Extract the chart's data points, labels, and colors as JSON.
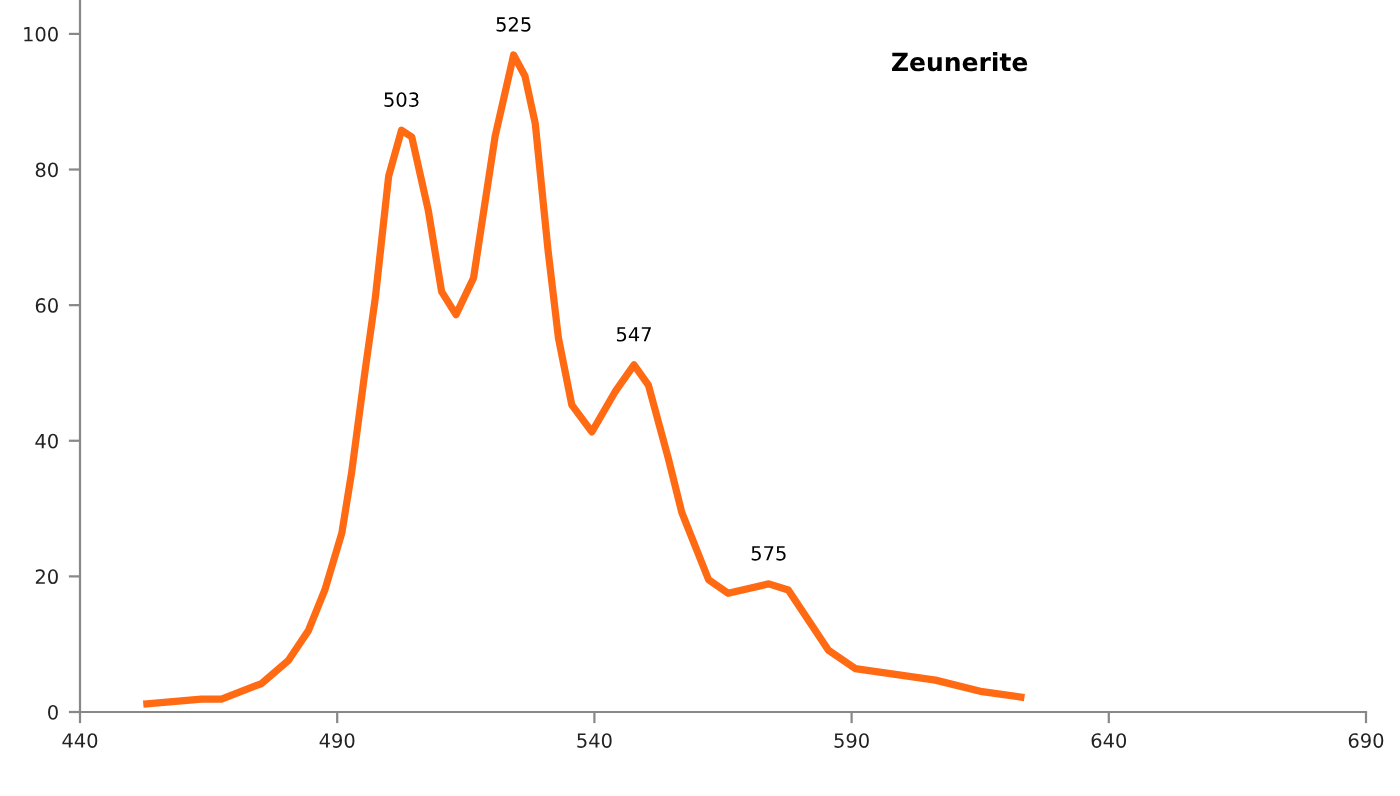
{
  "chart_data": {
    "type": "line",
    "title": "Zeunerite",
    "x": [
      453,
      463.6,
      467.5,
      475.3,
      480.5,
      484.4,
      487.6,
      490.9,
      492.8,
      495.4,
      497.4,
      500,
      502.5,
      504.5,
      507.7,
      510.3,
      513.1,
      516.5,
      520.7,
      524.3,
      526.5,
      528.5,
      531,
      533,
      535.6,
      539.5,
      544,
      547.7,
      550.5,
      554.4,
      557,
      562.2,
      566,
      573.9,
      577.7,
      585.5,
      590.7,
      606.3,
      615.4,
      622.9
    ],
    "series": [
      {
        "color": "#ff6a13",
        "values": [
          1.2,
          1.9,
          1.9,
          4.2,
          7.6,
          12,
          18,
          26.4,
          35.3,
          50.2,
          61,
          79,
          85.8,
          84.8,
          74,
          62,
          58.6,
          64,
          84.9,
          96.9,
          93.8,
          86.8,
          68,
          55.2,
          45.3,
          41.3,
          47.2,
          51.2,
          48.2,
          37.3,
          29.4,
          19.5,
          17.5,
          18.9,
          18,
          9.1,
          6.4,
          4.7,
          3,
          2.2
        ]
      }
    ],
    "annotations": [
      {
        "text": "503",
        "x": 502.5,
        "y": 85.8
      },
      {
        "text": "525",
        "x": 524.3,
        "y": 96.9
      },
      {
        "text": "547",
        "x": 547.7,
        "y": 51.2
      },
      {
        "text": "575",
        "x": 573.9,
        "y": 18.9
      }
    ],
    "xlim": [
      440,
      690
    ],
    "xticks": [
      440,
      490,
      540,
      590,
      640,
      690
    ],
    "ylim": [
      0,
      105
    ],
    "yticks": [
      0,
      20,
      40,
      60,
      80,
      100
    ],
    "grid": false,
    "marker": "none",
    "line_style": "solid"
  }
}
